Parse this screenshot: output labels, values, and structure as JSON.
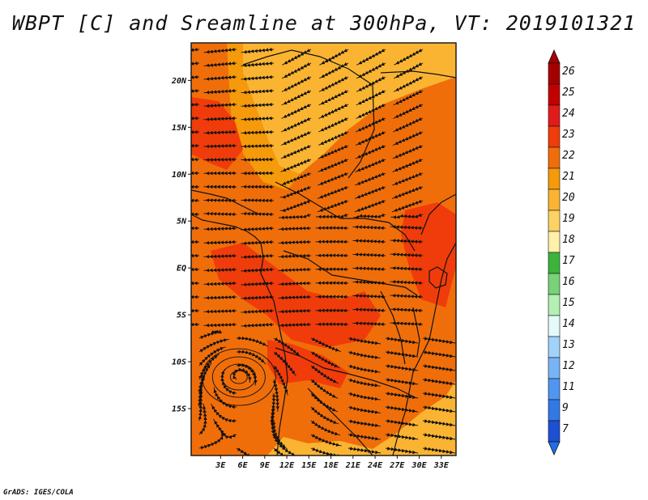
{
  "title": "WBPT [C] and Sreamline at 300hPa, VT: 2019101321",
  "credit": "GrADS: IGES/COLA",
  "map": {
    "lon_range": [
      -1,
      35
    ],
    "lat_range": [
      -20,
      24
    ],
    "lat_ticks": [
      {
        "value": 20,
        "label": "20N"
      },
      {
        "value": 15,
        "label": "15N"
      },
      {
        "value": 10,
        "label": "10N"
      },
      {
        "value": 5,
        "label": "5N"
      },
      {
        "value": 0,
        "label": "EQ"
      },
      {
        "value": -5,
        "label": "5S"
      },
      {
        "value": -10,
        "label": "10S"
      },
      {
        "value": -15,
        "label": "15S"
      }
    ],
    "lon_ticks": [
      {
        "value": 3,
        "label": "3E"
      },
      {
        "value": 6,
        "label": "6E"
      },
      {
        "value": 9,
        "label": "9E"
      },
      {
        "value": 12,
        "label": "12E"
      },
      {
        "value": 15,
        "label": "15E"
      },
      {
        "value": 18,
        "label": "18E"
      },
      {
        "value": 21,
        "label": "21E"
      },
      {
        "value": 24,
        "label": "24E"
      },
      {
        "value": 27,
        "label": "27E"
      },
      {
        "value": 30,
        "label": "30E"
      },
      {
        "value": 33,
        "label": "33E"
      }
    ]
  },
  "colorbar": {
    "levels": [
      {
        "label": "26",
        "color": "#a50000"
      },
      {
        "label": "25",
        "color": "#c30000"
      },
      {
        "label": "24",
        "color": "#e31a1c"
      },
      {
        "label": "23",
        "color": "#f03c0a"
      },
      {
        "label": "22",
        "color": "#f06e0a"
      },
      {
        "label": "21",
        "color": "#f59a0a"
      },
      {
        "label": "20",
        "color": "#fab432"
      },
      {
        "label": "19",
        "color": "#fcd264"
      },
      {
        "label": "18",
        "color": "#fff0aa"
      },
      {
        "label": "17",
        "color": "#3cb43c"
      },
      {
        "label": "16",
        "color": "#78d278"
      },
      {
        "label": "15",
        "color": "#b4f0b4"
      },
      {
        "label": "14",
        "color": "#e6fafa"
      },
      {
        "label": "13",
        "color": "#a0d2fa"
      },
      {
        "label": "12",
        "color": "#78b4f5"
      },
      {
        "label": "11",
        "color": "#5096f0"
      },
      {
        "label": "9",
        "color": "#3278e6"
      },
      {
        "label": "7",
        "color": "#1e50d2"
      }
    ],
    "bottom_color": "#1e6ee6"
  },
  "field_colors": {
    "base": "#f06e0a",
    "cool": "#fab432",
    "mild": "#f59a0a",
    "warm": "#f03c0a"
  }
}
